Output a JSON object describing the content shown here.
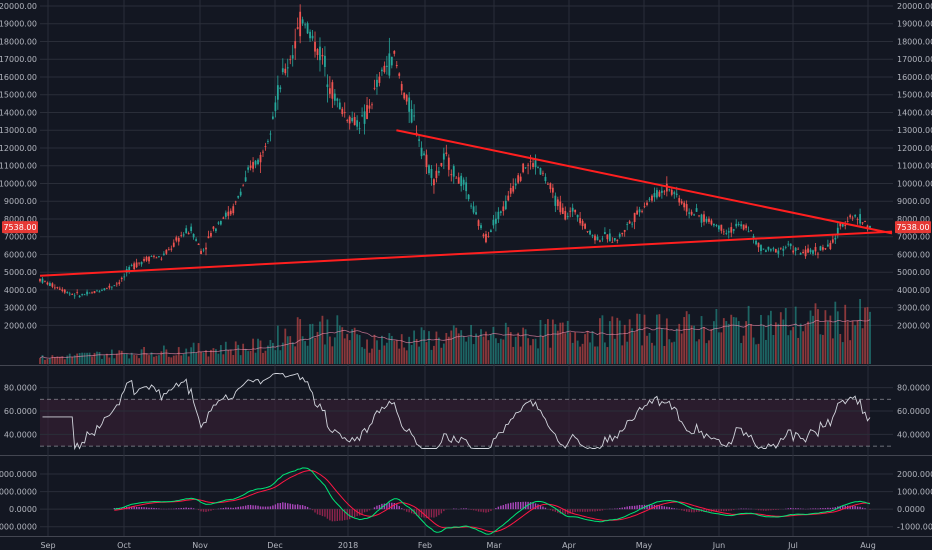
{
  "colors": {
    "background": "#131722",
    "grid": "#2a2e39",
    "axis_text": "#b2b5be",
    "up": "#26a69a",
    "down": "#ef5350",
    "trendline": "#ff1f1f",
    "rsi_line": "#d1d4dc",
    "rsi_band": "#3a1f35",
    "macd_line": "#00e676",
    "signal_line": "#ff1744",
    "hist_up": "#ab47bc",
    "hist_down": "#8e244d",
    "volume_ma": "#f48fb1"
  },
  "chart_data": [
    {
      "type": "candlestick",
      "name": "price",
      "ylim": [
        0,
        20000
      ],
      "yticks": [
        "2000.00",
        "3000.00",
        "4000.00",
        "5000.00",
        "6000.00",
        "7000.00",
        "8000.00",
        "9000.00",
        "10000.00",
        "11000.00",
        "12000.00",
        "13000.00",
        "14000.00",
        "15000.00",
        "16000.00",
        "17000.00",
        "18000.00",
        "19000.00",
        "20000.00"
      ],
      "last_price_label": "7538.00",
      "x_labels": [
        "Sep",
        "Oct",
        "Nov",
        "Dec",
        "2018",
        "Feb",
        "Mar",
        "Apr",
        "May",
        "Jun",
        "Jul",
        "Aug"
      ],
      "closes": [
        4600,
        4300,
        4100,
        3800,
        3700,
        3800,
        4000,
        4200,
        4500,
        5300,
        5600,
        5900,
        5800,
        6400,
        7100,
        7400,
        6100,
        7300,
        8100,
        8400,
        9800,
        11000,
        11600,
        14000,
        16000,
        17500,
        19500,
        18000,
        17000,
        15000,
        14000,
        13500,
        13500,
        15000,
        16500,
        17100,
        15000,
        13500,
        11500,
        10200,
        11500,
        10500,
        9800,
        8200,
        6900,
        8000,
        8800,
        10200,
        11000,
        11100,
        10200,
        9000,
        8200,
        8500,
        7400,
        6900,
        7000,
        6800,
        7600,
        8300,
        9000,
        9400,
        9800,
        9300,
        8500,
        8200,
        7900,
        7600,
        7300,
        7600,
        7500,
        6400,
        6200,
        6300,
        6500,
        6100,
        6100,
        6300,
        6400,
        7400,
        8200,
        8000,
        7538
      ],
      "trendlines": [
        {
          "role": "ascending-support",
          "from": {
            "date": "2017-08-26",
            "price": 4800
          },
          "to": {
            "date": "2018-08-01",
            "price": 7400
          }
        },
        {
          "role": "descending-resistance",
          "from": {
            "date": "2018-01-19",
            "price": 13000
          },
          "to": {
            "date": "2018-08-01",
            "price": 7300
          }
        }
      ]
    },
    {
      "type": "bar",
      "name": "volume"
    },
    {
      "type": "line",
      "name": "rsi",
      "ylim": [
        25,
        95
      ],
      "yticks": [
        "80.0000",
        "60.0000",
        "40.0000"
      ],
      "bands": [
        30,
        70
      ]
    },
    {
      "type": "line",
      "name": "macd",
      "ylim": [
        -1300,
        2800
      ],
      "yticks": [
        "2000.0000",
        "1000.0000",
        "0.0000",
        "-1000.0000"
      ],
      "series": [
        {
          "values_from": "price"
        },
        {
          "values_from": "price"
        }
      ]
    }
  ]
}
